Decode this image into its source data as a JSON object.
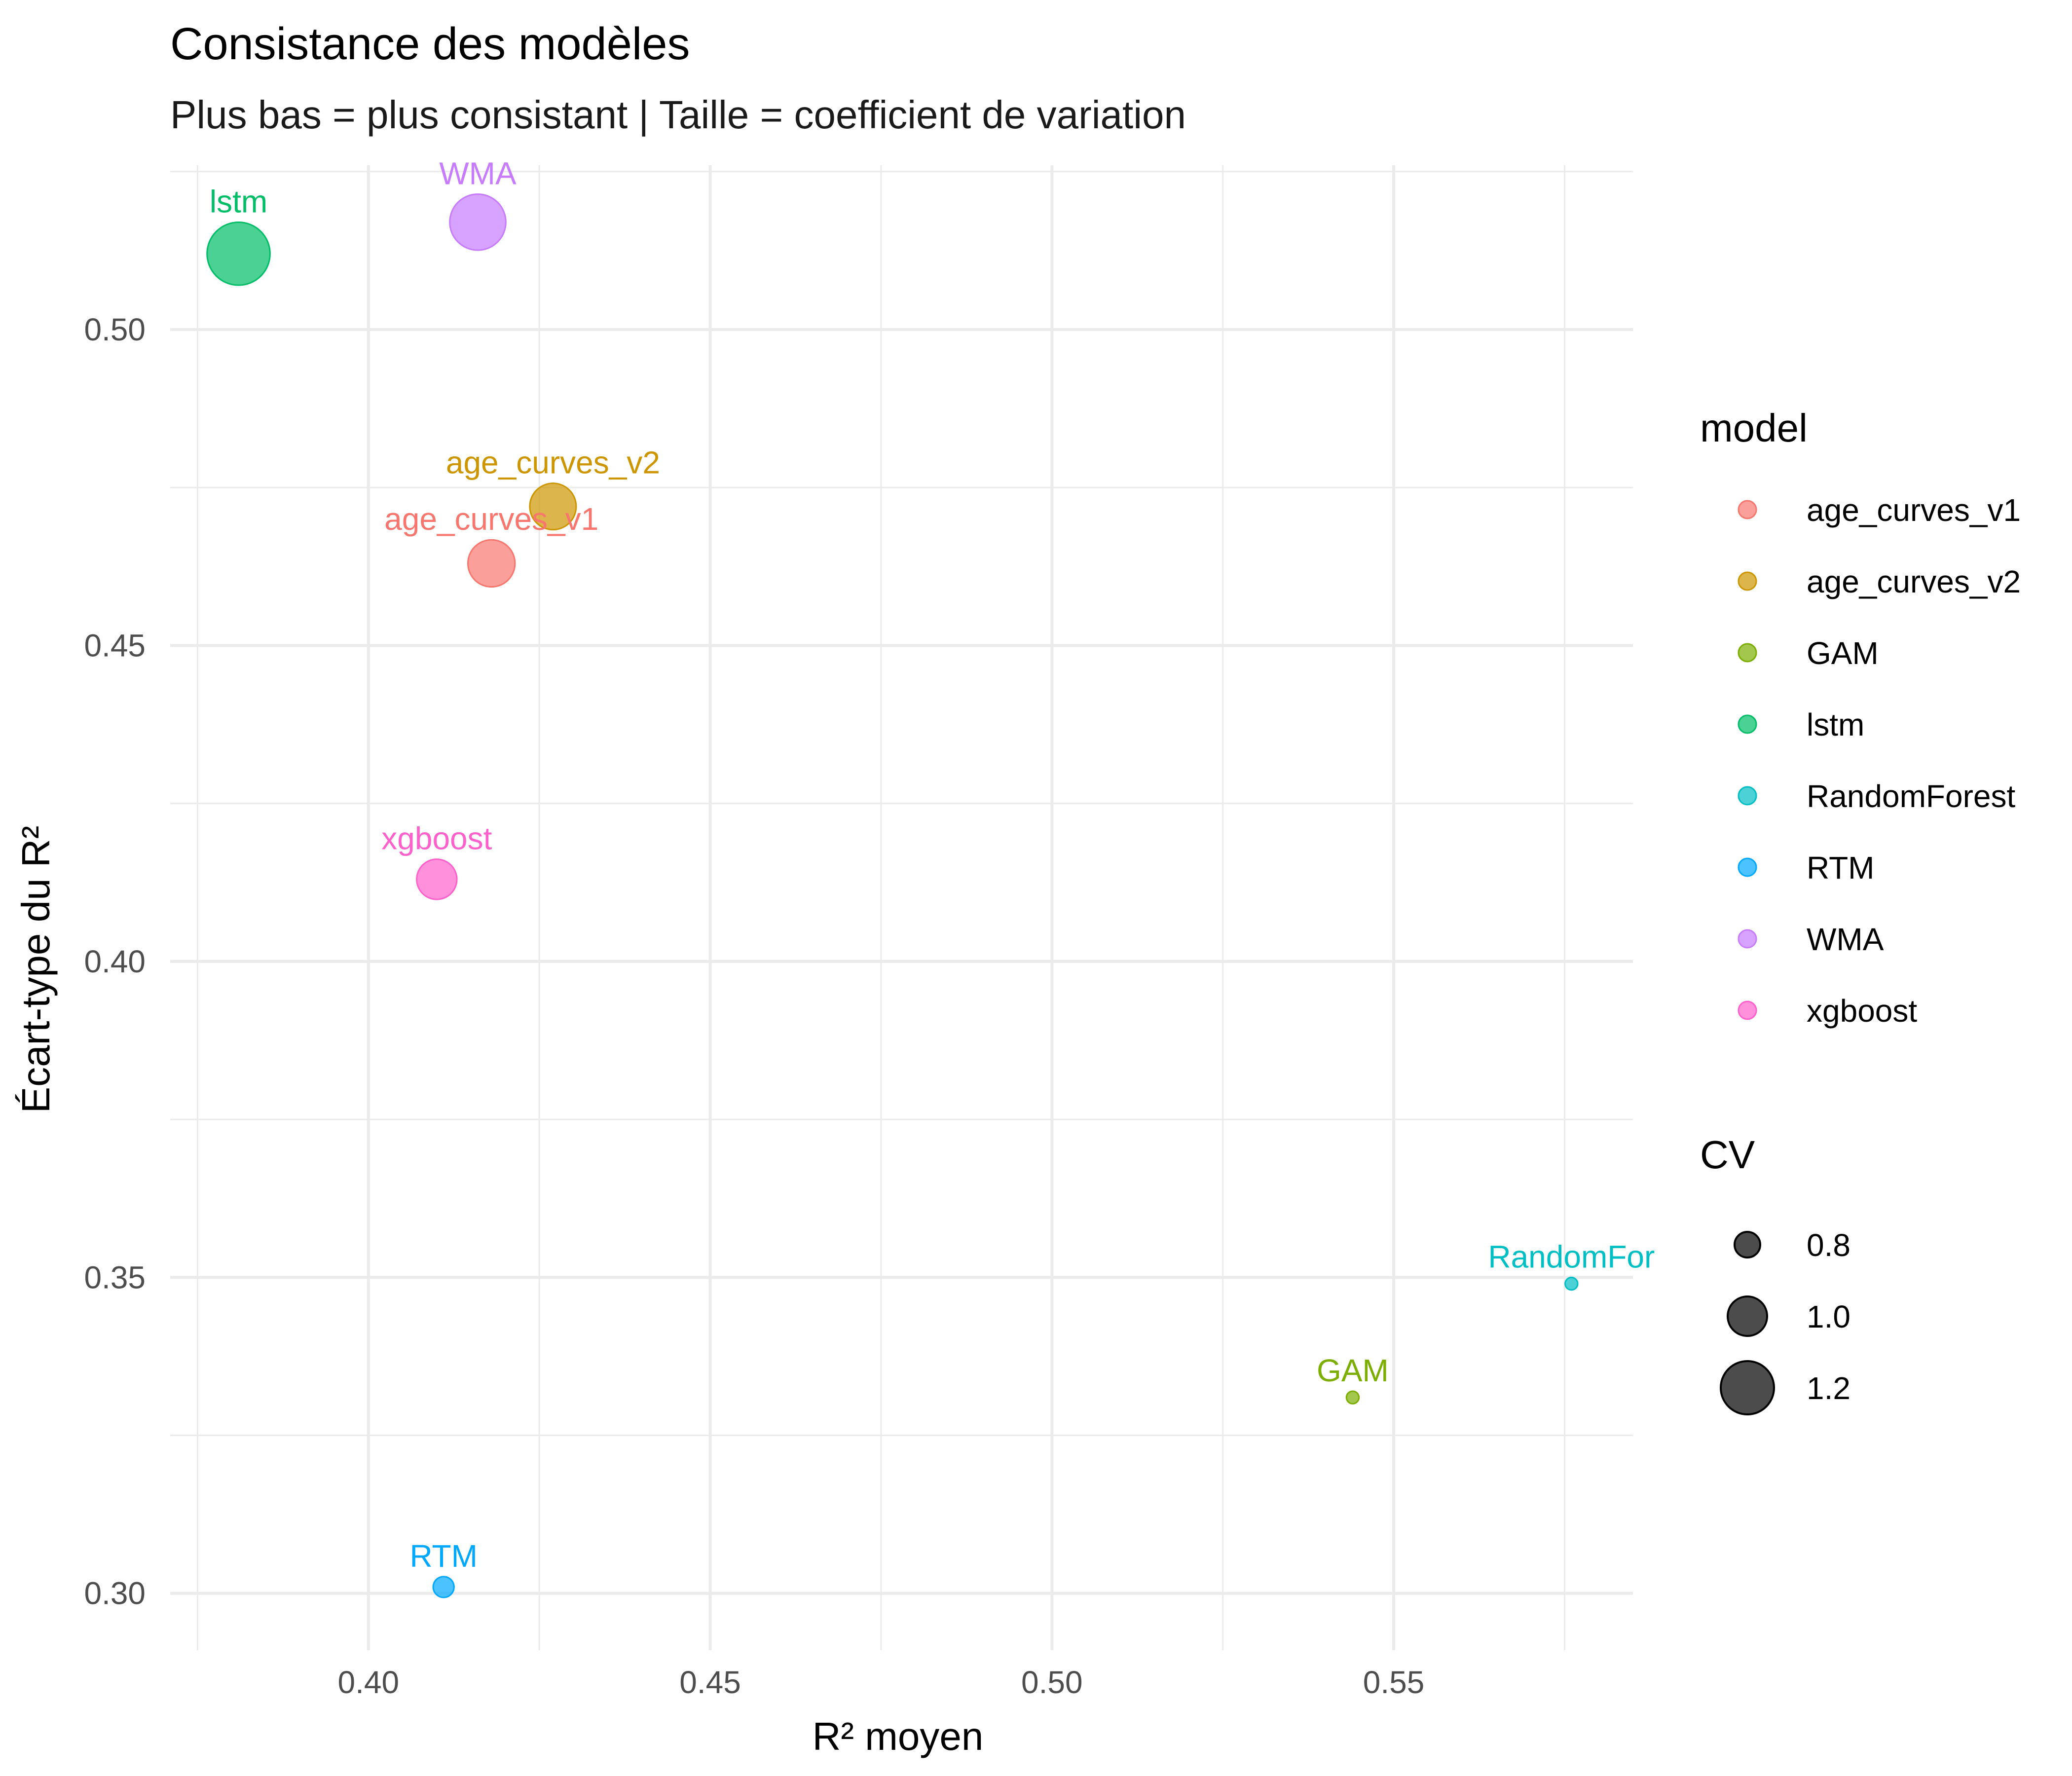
{
  "chart_data": {
    "type": "scatter",
    "title": "Consistance des modèles",
    "subtitle": "Plus bas = plus consistant | Taille = coefficient de variation",
    "xlabel": "R² moyen",
    "ylabel": "Écart-type du R²",
    "xlim": [
      0.371,
      0.585
    ],
    "ylim": [
      0.291,
      0.526
    ],
    "x_ticks": [
      "0.40",
      "0.45",
      "0.50",
      "0.55"
    ],
    "y_ticks": [
      "0.30",
      "0.35",
      "0.40",
      "0.45",
      "0.50"
    ],
    "grid": true,
    "legend_position": "right",
    "color_legend_title": "model",
    "size_legend_title": "CV",
    "size_legend": [
      "0.8",
      "1.0",
      "1.2"
    ],
    "series": [
      {
        "name": "age_curves_v1",
        "label": "age_curves_v1",
        "x": 0.418,
        "y": 0.463,
        "cv": 1.11,
        "color": "#F8766D"
      },
      {
        "name": "age_curves_v2",
        "label": "age_curves_v2",
        "x": 0.427,
        "y": 0.472,
        "cv": 1.1,
        "color": "#CD9600"
      },
      {
        "name": "GAM",
        "label": "GAM",
        "x": 0.544,
        "y": 0.331,
        "cv": 0.61,
        "color": "#7CAE00"
      },
      {
        "name": "lstm",
        "label": "lstm",
        "x": 0.381,
        "y": 0.512,
        "cv": 1.34,
        "color": "#00BE67"
      },
      {
        "name": "RandomForest",
        "label": "RandomFor",
        "x": 0.576,
        "y": 0.349,
        "cv": 0.61,
        "color": "#00BFC4"
      },
      {
        "name": "RTM",
        "label": "RTM",
        "x": 0.411,
        "y": 0.301,
        "cv": 0.73,
        "color": "#00A9FF"
      },
      {
        "name": "WMA",
        "label": "WMA",
        "x": 0.416,
        "y": 0.517,
        "cv": 1.24,
        "color": "#C77CFF"
      },
      {
        "name": "xgboost",
        "label": "xgboost",
        "x": 0.41,
        "y": 0.413,
        "cv": 1.01,
        "color": "#FF61CC"
      }
    ]
  }
}
